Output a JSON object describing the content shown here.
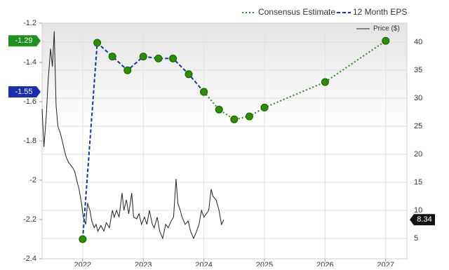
{
  "chart_data": {
    "type": "line",
    "xlim": [
      2021.33,
      2027.35
    ],
    "xticks": [
      2022,
      2023,
      2024,
      2025,
      2026,
      2027
    ],
    "ylim": [
      -2.4,
      -1.2
    ],
    "yticks": [
      -1.2,
      -1.4,
      -1.6,
      -1.8,
      -2,
      -2.2,
      -2.4
    ],
    "y2lim": [
      1.375,
      43.375
    ],
    "y2ticks": [
      5,
      10,
      15,
      20,
      25,
      30,
      35,
      40
    ],
    "grid": true,
    "legend": "top-right",
    "series": [
      {
        "name": "Consensus Estimate",
        "color": "#1f8f1f",
        "style": "dotted",
        "x": [
          2024.0,
          2024.25,
          2024.5,
          2024.75,
          2025.0,
          2026.0,
          2027.0
        ],
        "values": [
          -1.55,
          -1.64,
          -1.69,
          -1.675,
          -1.63,
          -1.5,
          -1.29
        ]
      },
      {
        "name": "12 Month EPS",
        "color": "#1a2fb0",
        "style": "dashed",
        "x": [
          2022.0,
          2022.24,
          2022.49,
          2022.74,
          2023.0,
          2023.25,
          2023.49,
          2023.75,
          2024.0
        ],
        "values": [
          -2.3,
          -1.3,
          -1.37,
          -1.44,
          -1.37,
          -1.38,
          -1.38,
          -1.46,
          -1.55
        ]
      },
      {
        "name": "Price ($)",
        "color": "#222222",
        "axis": "y2",
        "x": [
          2021.33,
          2021.36,
          2021.4,
          2021.43,
          2021.47,
          2021.5,
          2021.53,
          2021.56,
          2021.59,
          2021.63,
          2021.66,
          2021.7,
          2021.73,
          2021.77,
          2021.8,
          2021.84,
          2021.87,
          2021.91,
          2021.94,
          2021.98,
          2022.01,
          2022.05,
          2022.08,
          2022.12,
          2022.15,
          2022.19,
          2022.22,
          2022.25,
          2022.3,
          2022.35,
          2022.39,
          2022.44,
          2022.49,
          2022.52,
          2022.56,
          2022.6,
          2022.65,
          2022.68,
          2022.72,
          2022.76,
          2022.81,
          2022.84,
          2022.89,
          2022.93,
          2022.97,
          2023.02,
          2023.06,
          2023.1,
          2023.15,
          2023.18,
          2023.23,
          2023.27,
          2023.32,
          2023.37,
          2023.41,
          2023.46,
          2023.5,
          2023.54,
          2023.57,
          2023.61,
          2023.64,
          2023.69,
          2023.74,
          2023.78,
          2023.83,
          2023.88,
          2023.92,
          2023.96,
          2024.0,
          2024.04,
          2024.08,
          2024.12,
          2024.15,
          2024.2,
          2024.25,
          2024.29,
          2024.33
        ],
        "values": [
          28.1,
          21.3,
          26.9,
          33.1,
          38.8,
          35.6,
          41.9,
          28.8,
          25.0,
          23.8,
          22.5,
          20.6,
          19.4,
          18.5,
          18.1,
          17.5,
          16.9,
          15.0,
          13.8,
          11.3,
          8.8,
          7.5,
          11.3,
          10.0,
          8.1,
          6.9,
          7.5,
          6.3,
          7.3,
          6.3,
          7.8,
          6.9,
          10.0,
          8.8,
          10.0,
          8.8,
          13.1,
          10.0,
          11.9,
          9.4,
          13.1,
          8.8,
          8.5,
          9.4,
          7.5,
          8.8,
          7.5,
          10.0,
          7.5,
          6.9,
          8.8,
          6.3,
          5.0,
          7.5,
          6.9,
          8.1,
          8.8,
          15.6,
          11.3,
          10.0,
          8.8,
          7.5,
          8.1,
          6.3,
          5.0,
          6.3,
          7.5,
          10.0,
          8.8,
          9.4,
          10.0,
          13.8,
          12.5,
          11.9,
          10.0,
          7.5,
          8.34
        ]
      }
    ]
  }
}
